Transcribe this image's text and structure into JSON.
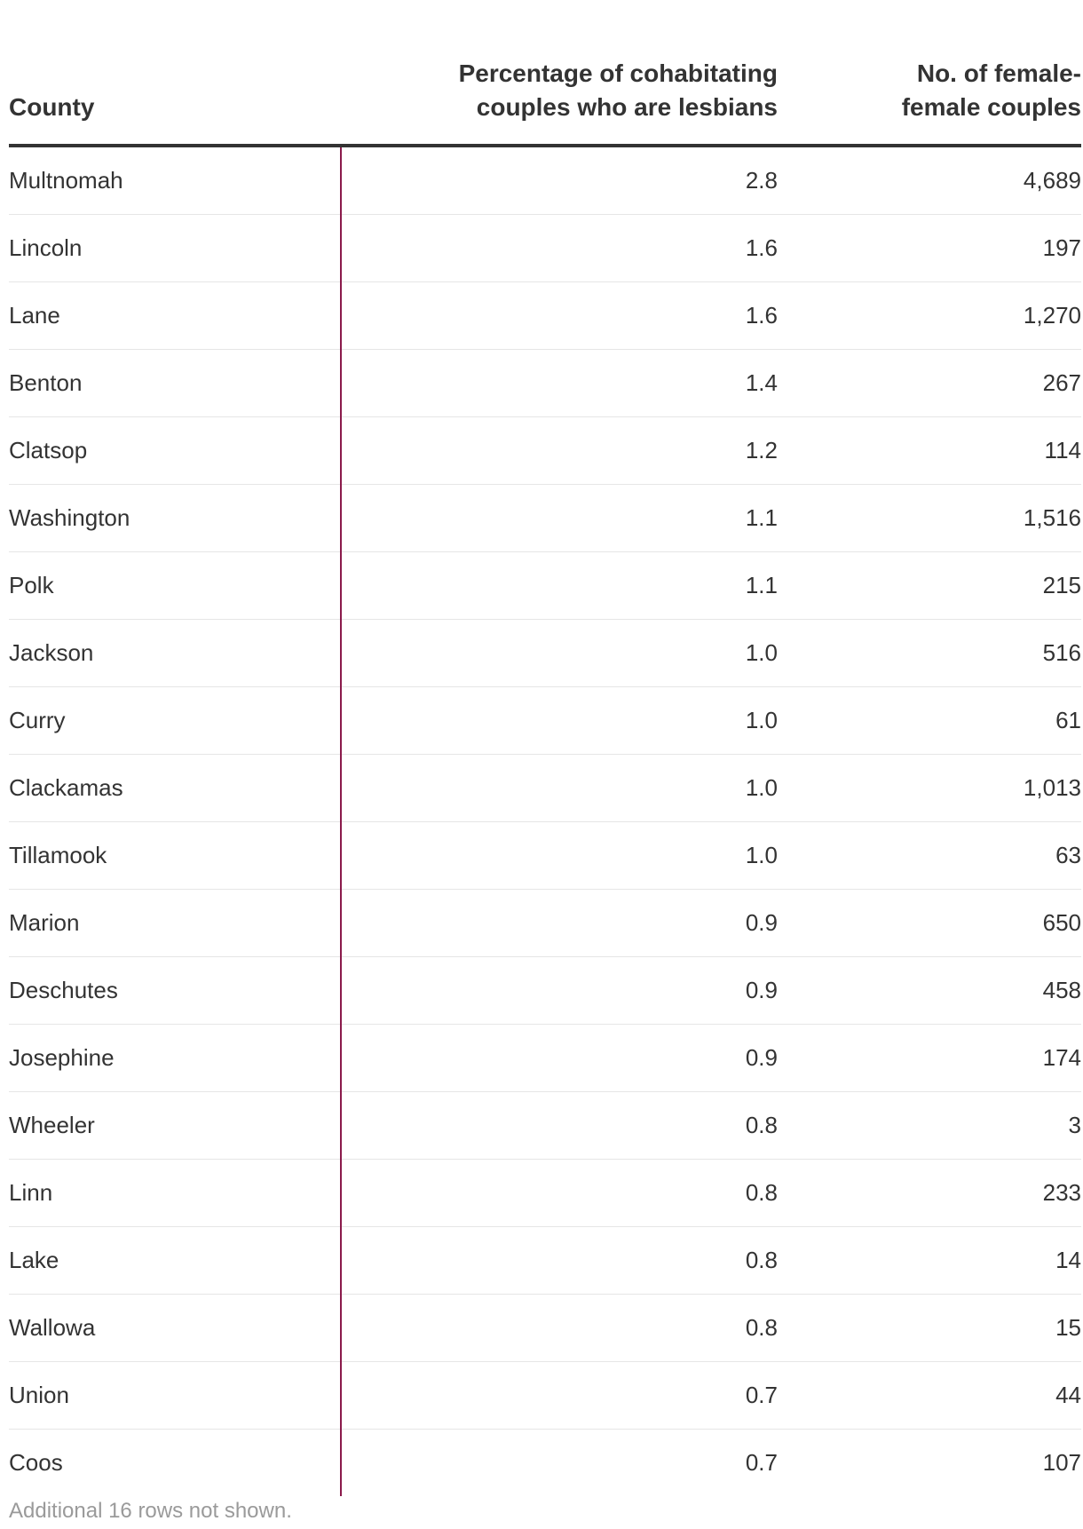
{
  "chart_data": {
    "type": "table",
    "columns": [
      "County",
      "Percentage of cohabitating couples who are lesbians",
      "No. of female-female couples"
    ],
    "rows": [
      [
        "Multnomah",
        "2.8",
        "4,689"
      ],
      [
        "Lincoln",
        "1.6",
        "197"
      ],
      [
        "Lane",
        "1.6",
        "1,270"
      ],
      [
        "Benton",
        "1.4",
        "267"
      ],
      [
        "Clatsop",
        "1.2",
        "114"
      ],
      [
        "Washington",
        "1.1",
        "1,516"
      ],
      [
        "Polk",
        "1.1",
        "215"
      ],
      [
        "Jackson",
        "1.0",
        "516"
      ],
      [
        "Curry",
        "1.0",
        "61"
      ],
      [
        "Clackamas",
        "1.0",
        "1,013"
      ],
      [
        "Tillamook",
        "1.0",
        "63"
      ],
      [
        "Marion",
        "0.9",
        "650"
      ],
      [
        "Deschutes",
        "0.9",
        "458"
      ],
      [
        "Josephine",
        "0.9",
        "174"
      ],
      [
        "Wheeler",
        "0.8",
        "3"
      ],
      [
        "Linn",
        "0.8",
        "233"
      ],
      [
        "Lake",
        "0.8",
        "14"
      ],
      [
        "Wallowa",
        "0.8",
        "15"
      ],
      [
        "Union",
        "0.7",
        "44"
      ],
      [
        "Coos",
        "0.7",
        "107"
      ]
    ],
    "footnote": "Additional 16 rows not shown."
  },
  "colors": {
    "divider_accent": "#8a1a4b",
    "text": "#333333",
    "footnote": "#9a9a9a"
  }
}
